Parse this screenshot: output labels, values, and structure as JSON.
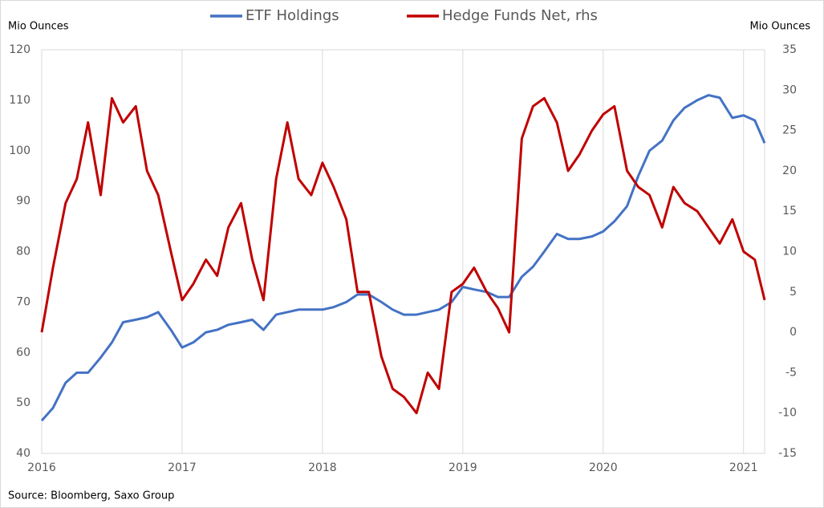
{
  "chart_data": {
    "type": "line",
    "y_label": "Mio Ounces",
    "y2_label": "Mio Ounces",
    "source": "Source: Bloomberg, Saxo Group",
    "legend": "top",
    "grid": true,
    "x": [
      2016.0,
      2016.08,
      2016.17,
      2016.25,
      2016.33,
      2016.42,
      2016.5,
      2016.58,
      2016.67,
      2016.75,
      2016.83,
      2016.92,
      2017.0,
      2017.08,
      2017.17,
      2017.25,
      2017.33,
      2017.42,
      2017.5,
      2017.58,
      2017.67,
      2017.75,
      2017.83,
      2017.92,
      2018.0,
      2018.08,
      2018.17,
      2018.25,
      2018.33,
      2018.42,
      2018.5,
      2018.58,
      2018.67,
      2018.75,
      2018.83,
      2018.92,
      2019.0,
      2019.08,
      2019.17,
      2019.25,
      2019.33,
      2019.42,
      2019.5,
      2019.58,
      2019.67,
      2019.75,
      2019.83,
      2019.92,
      2020.0,
      2020.08,
      2020.17,
      2020.25,
      2020.33,
      2020.42,
      2020.5,
      2020.58,
      2020.67,
      2020.75,
      2020.83,
      2020.92,
      2021.0,
      2021.08,
      2021.15
    ],
    "xlim": [
      2016,
      2021.15
    ],
    "xticks": [
      2016,
      2017,
      2018,
      2019,
      2020,
      2021
    ],
    "ylim": [
      40,
      120
    ],
    "yticks": [
      40,
      50,
      60,
      70,
      80,
      90,
      100,
      110,
      120
    ],
    "y2lim": [
      -15,
      35
    ],
    "y2ticks": [
      -15,
      -10,
      -5,
      0,
      5,
      10,
      15,
      20,
      25,
      30,
      35
    ],
    "series": [
      {
        "name": "ETF Holdings",
        "color": "#4472c4",
        "axis": "y",
        "values": [
          46.5,
          49,
          54,
          56,
          56,
          59,
          62,
          66,
          66.5,
          67,
          68,
          64.5,
          61,
          62,
          64,
          64.5,
          65.5,
          66,
          66.5,
          64.5,
          67.5,
          68,
          68.5,
          68.5,
          68.5,
          69,
          70,
          71.5,
          71.5,
          70,
          68.5,
          67.5,
          67.5,
          68,
          68.5,
          70,
          73,
          72.5,
          72,
          71,
          71,
          75,
          77,
          80,
          83.5,
          82.5,
          82.5,
          83,
          84,
          86,
          89,
          95,
          100,
          102,
          106,
          108.5,
          110,
          111,
          110.5,
          106.5,
          107,
          106,
          101.5
        ]
      },
      {
        "name": "Hedge Funds Net, rhs",
        "color": "#c00000",
        "axis": "y2",
        "values": [
          0,
          8,
          16,
          19,
          26,
          17,
          29,
          26,
          28,
          20,
          17,
          10,
          4,
          6,
          9,
          7,
          13,
          16,
          9,
          4,
          19,
          26,
          19,
          17,
          21,
          18,
          14,
          5,
          5,
          -3,
          -7,
          -8,
          -10,
          -5,
          -7,
          5,
          6,
          8,
          5,
          3,
          0,
          24,
          28,
          29,
          26,
          20,
          22,
          25,
          27,
          28,
          20,
          18,
          17,
          13,
          18,
          16,
          15,
          13,
          11,
          14,
          10,
          9,
          4
        ]
      }
    ]
  }
}
